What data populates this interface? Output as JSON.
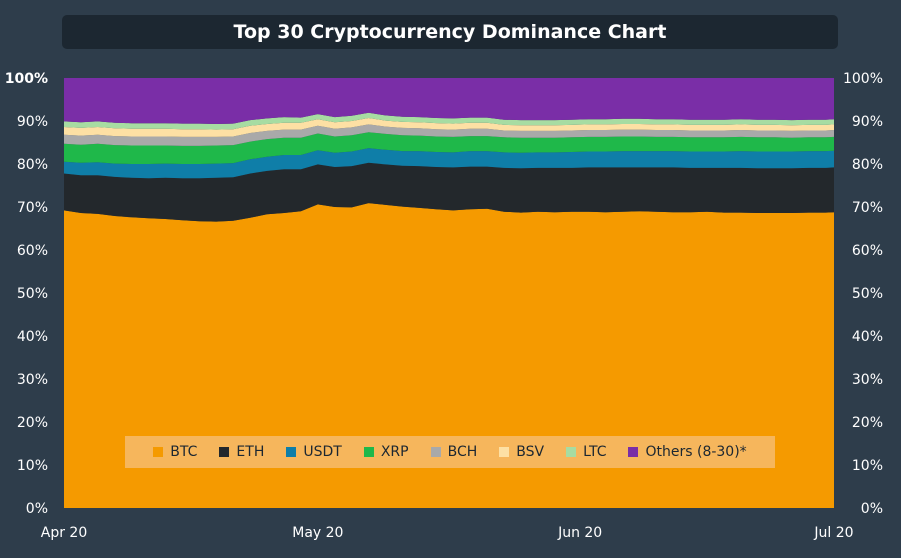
{
  "chart_data": {
    "type": "area",
    "stacked": true,
    "title": "Top 30 Cryptocurrency Dominance Chart",
    "x": [
      0,
      2,
      4,
      6,
      8,
      10,
      12,
      14,
      16,
      18,
      20,
      22,
      24,
      26,
      28,
      30,
      32,
      34,
      36,
      38,
      40,
      42,
      44,
      46,
      48,
      50,
      52,
      54,
      56,
      58,
      60,
      62,
      64,
      66,
      68,
      70,
      72,
      74,
      76,
      78,
      80,
      82,
      84,
      86,
      88,
      90,
      91
    ],
    "x_unit": "days since Apr 20",
    "x_ticks": [
      {
        "label": "Apr 20",
        "x": 0
      },
      {
        "label": "May 20",
        "x": 30
      },
      {
        "label": "Jun 20",
        "x": 61
      },
      {
        "label": "Jul 20",
        "x": 91
      }
    ],
    "ylim": [
      0,
      100
    ],
    "y_ticks": [
      "0%",
      "10%",
      "20%",
      "30%",
      "40%",
      "50%",
      "60%",
      "70%",
      "80%",
      "90%",
      "100%"
    ],
    "series": [
      {
        "name": "BTC",
        "color": "#f59a00",
        "values": [
          69.2,
          68.6,
          68.4,
          67.9,
          67.6,
          67.4,
          67.2,
          66.9,
          66.7,
          66.6,
          66.8,
          67.5,
          68.3,
          68.6,
          69.0,
          70.6,
          70.0,
          69.9,
          70.9,
          70.5,
          70.1,
          69.8,
          69.5,
          69.2,
          69.5,
          69.6,
          68.9,
          68.7,
          68.9,
          68.8,
          68.9,
          68.9,
          68.8,
          68.9,
          69.0,
          68.9,
          68.8,
          68.8,
          68.9,
          68.7,
          68.7,
          68.6,
          68.6,
          68.6,
          68.7,
          68.7,
          68.8
        ]
      },
      {
        "name": "ETH",
        "color": "#23282c",
        "values": [
          8.6,
          8.8,
          9.0,
          9.1,
          9.2,
          9.3,
          9.6,
          9.8,
          10.0,
          10.2,
          10.1,
          10.3,
          10.1,
          10.2,
          9.8,
          9.3,
          9.3,
          9.6,
          9.4,
          9.4,
          9.5,
          9.7,
          9.8,
          10.0,
          9.9,
          9.8,
          10.2,
          10.3,
          10.2,
          10.3,
          10.2,
          10.3,
          10.4,
          10.3,
          10.2,
          10.3,
          10.4,
          10.3,
          10.2,
          10.4,
          10.4,
          10.4,
          10.4,
          10.4,
          10.4,
          10.4,
          10.4
        ]
      },
      {
        "name": "USDT",
        "color": "#0f7ea8",
        "values": [
          2.7,
          2.9,
          3.0,
          3.1,
          3.2,
          3.3,
          3.3,
          3.3,
          3.3,
          3.3,
          3.3,
          3.3,
          3.3,
          3.3,
          3.3,
          3.3,
          3.3,
          3.4,
          3.4,
          3.4,
          3.4,
          3.5,
          3.5,
          3.5,
          3.6,
          3.6,
          3.6,
          3.6,
          3.6,
          3.6,
          3.7,
          3.7,
          3.7,
          3.8,
          3.8,
          3.8,
          3.8,
          3.8,
          3.8,
          3.8,
          3.9,
          3.9,
          3.9,
          3.9,
          3.9,
          3.9,
          3.9
        ]
      },
      {
        "name": "XRP",
        "color": "#1fb84a",
        "values": [
          4.2,
          4.2,
          4.3,
          4.3,
          4.3,
          4.3,
          4.2,
          4.2,
          4.2,
          4.2,
          4.2,
          4.1,
          4.1,
          4.0,
          4.0,
          3.9,
          3.8,
          3.8,
          3.7,
          3.7,
          3.7,
          3.6,
          3.6,
          3.6,
          3.5,
          3.5,
          3.5,
          3.5,
          3.4,
          3.4,
          3.4,
          3.4,
          3.4,
          3.4,
          3.4,
          3.3,
          3.3,
          3.3,
          3.3,
          3.3,
          3.3,
          3.3,
          3.3,
          3.2,
          3.2,
          3.2,
          3.2
        ]
      },
      {
        "name": "BCH",
        "color": "#a9a9a9",
        "values": [
          2.1,
          2.1,
          2.1,
          2.1,
          2.1,
          2.1,
          2.1,
          2.1,
          2.1,
          2.0,
          2.0,
          2.0,
          1.9,
          1.9,
          1.9,
          1.8,
          1.8,
          1.8,
          1.8,
          1.7,
          1.7,
          1.7,
          1.7,
          1.7,
          1.7,
          1.7,
          1.6,
          1.6,
          1.6,
          1.6,
          1.6,
          1.6,
          1.6,
          1.6,
          1.6,
          1.6,
          1.6,
          1.6,
          1.6,
          1.6,
          1.6,
          1.6,
          1.6,
          1.6,
          1.6,
          1.6,
          1.6
        ]
      },
      {
        "name": "BSV",
        "color": "#fde0a4",
        "values": [
          1.8,
          1.8,
          1.8,
          1.8,
          1.8,
          1.8,
          1.8,
          1.8,
          1.8,
          1.7,
          1.7,
          1.7,
          1.6,
          1.6,
          1.6,
          1.5,
          1.5,
          1.5,
          1.5,
          1.4,
          1.4,
          1.4,
          1.4,
          1.4,
          1.4,
          1.4,
          1.3,
          1.3,
          1.3,
          1.3,
          1.3,
          1.3,
          1.3,
          1.3,
          1.3,
          1.3,
          1.3,
          1.3,
          1.3,
          1.3,
          1.3,
          1.3,
          1.3,
          1.3,
          1.3,
          1.3,
          1.3
        ]
      },
      {
        "name": "LTC",
        "color": "#a7dca2",
        "values": [
          1.3,
          1.3,
          1.3,
          1.3,
          1.3,
          1.3,
          1.3,
          1.3,
          1.3,
          1.3,
          1.3,
          1.3,
          1.3,
          1.3,
          1.2,
          1.2,
          1.2,
          1.2,
          1.2,
          1.2,
          1.2,
          1.2,
          1.2,
          1.2,
          1.2,
          1.2,
          1.2,
          1.2,
          1.2,
          1.2,
          1.2,
          1.2,
          1.2,
          1.2,
          1.2,
          1.2,
          1.2,
          1.2,
          1.2,
          1.2,
          1.2,
          1.2,
          1.2,
          1.2,
          1.2,
          1.2,
          1.2
        ]
      },
      {
        "name": "Others (8-30)*",
        "color": "#7a2ea7",
        "values": [
          10.1,
          10.3,
          10.1,
          10.4,
          10.5,
          10.5,
          10.5,
          10.6,
          10.6,
          10.7,
          10.6,
          9.8,
          9.4,
          9.1,
          9.2,
          8.4,
          9.1,
          8.8,
          8.1,
          8.7,
          9.0,
          9.1,
          9.3,
          9.4,
          9.2,
          9.2,
          9.7,
          9.8,
          9.8,
          9.8,
          9.7,
          9.6,
          9.6,
          9.5,
          9.5,
          9.6,
          9.6,
          9.7,
          9.7,
          9.7,
          9.6,
          9.7,
          9.7,
          9.8,
          9.7,
          9.7,
          9.6
        ]
      }
    ],
    "legend_position": "bottom-center",
    "grid": false
  }
}
